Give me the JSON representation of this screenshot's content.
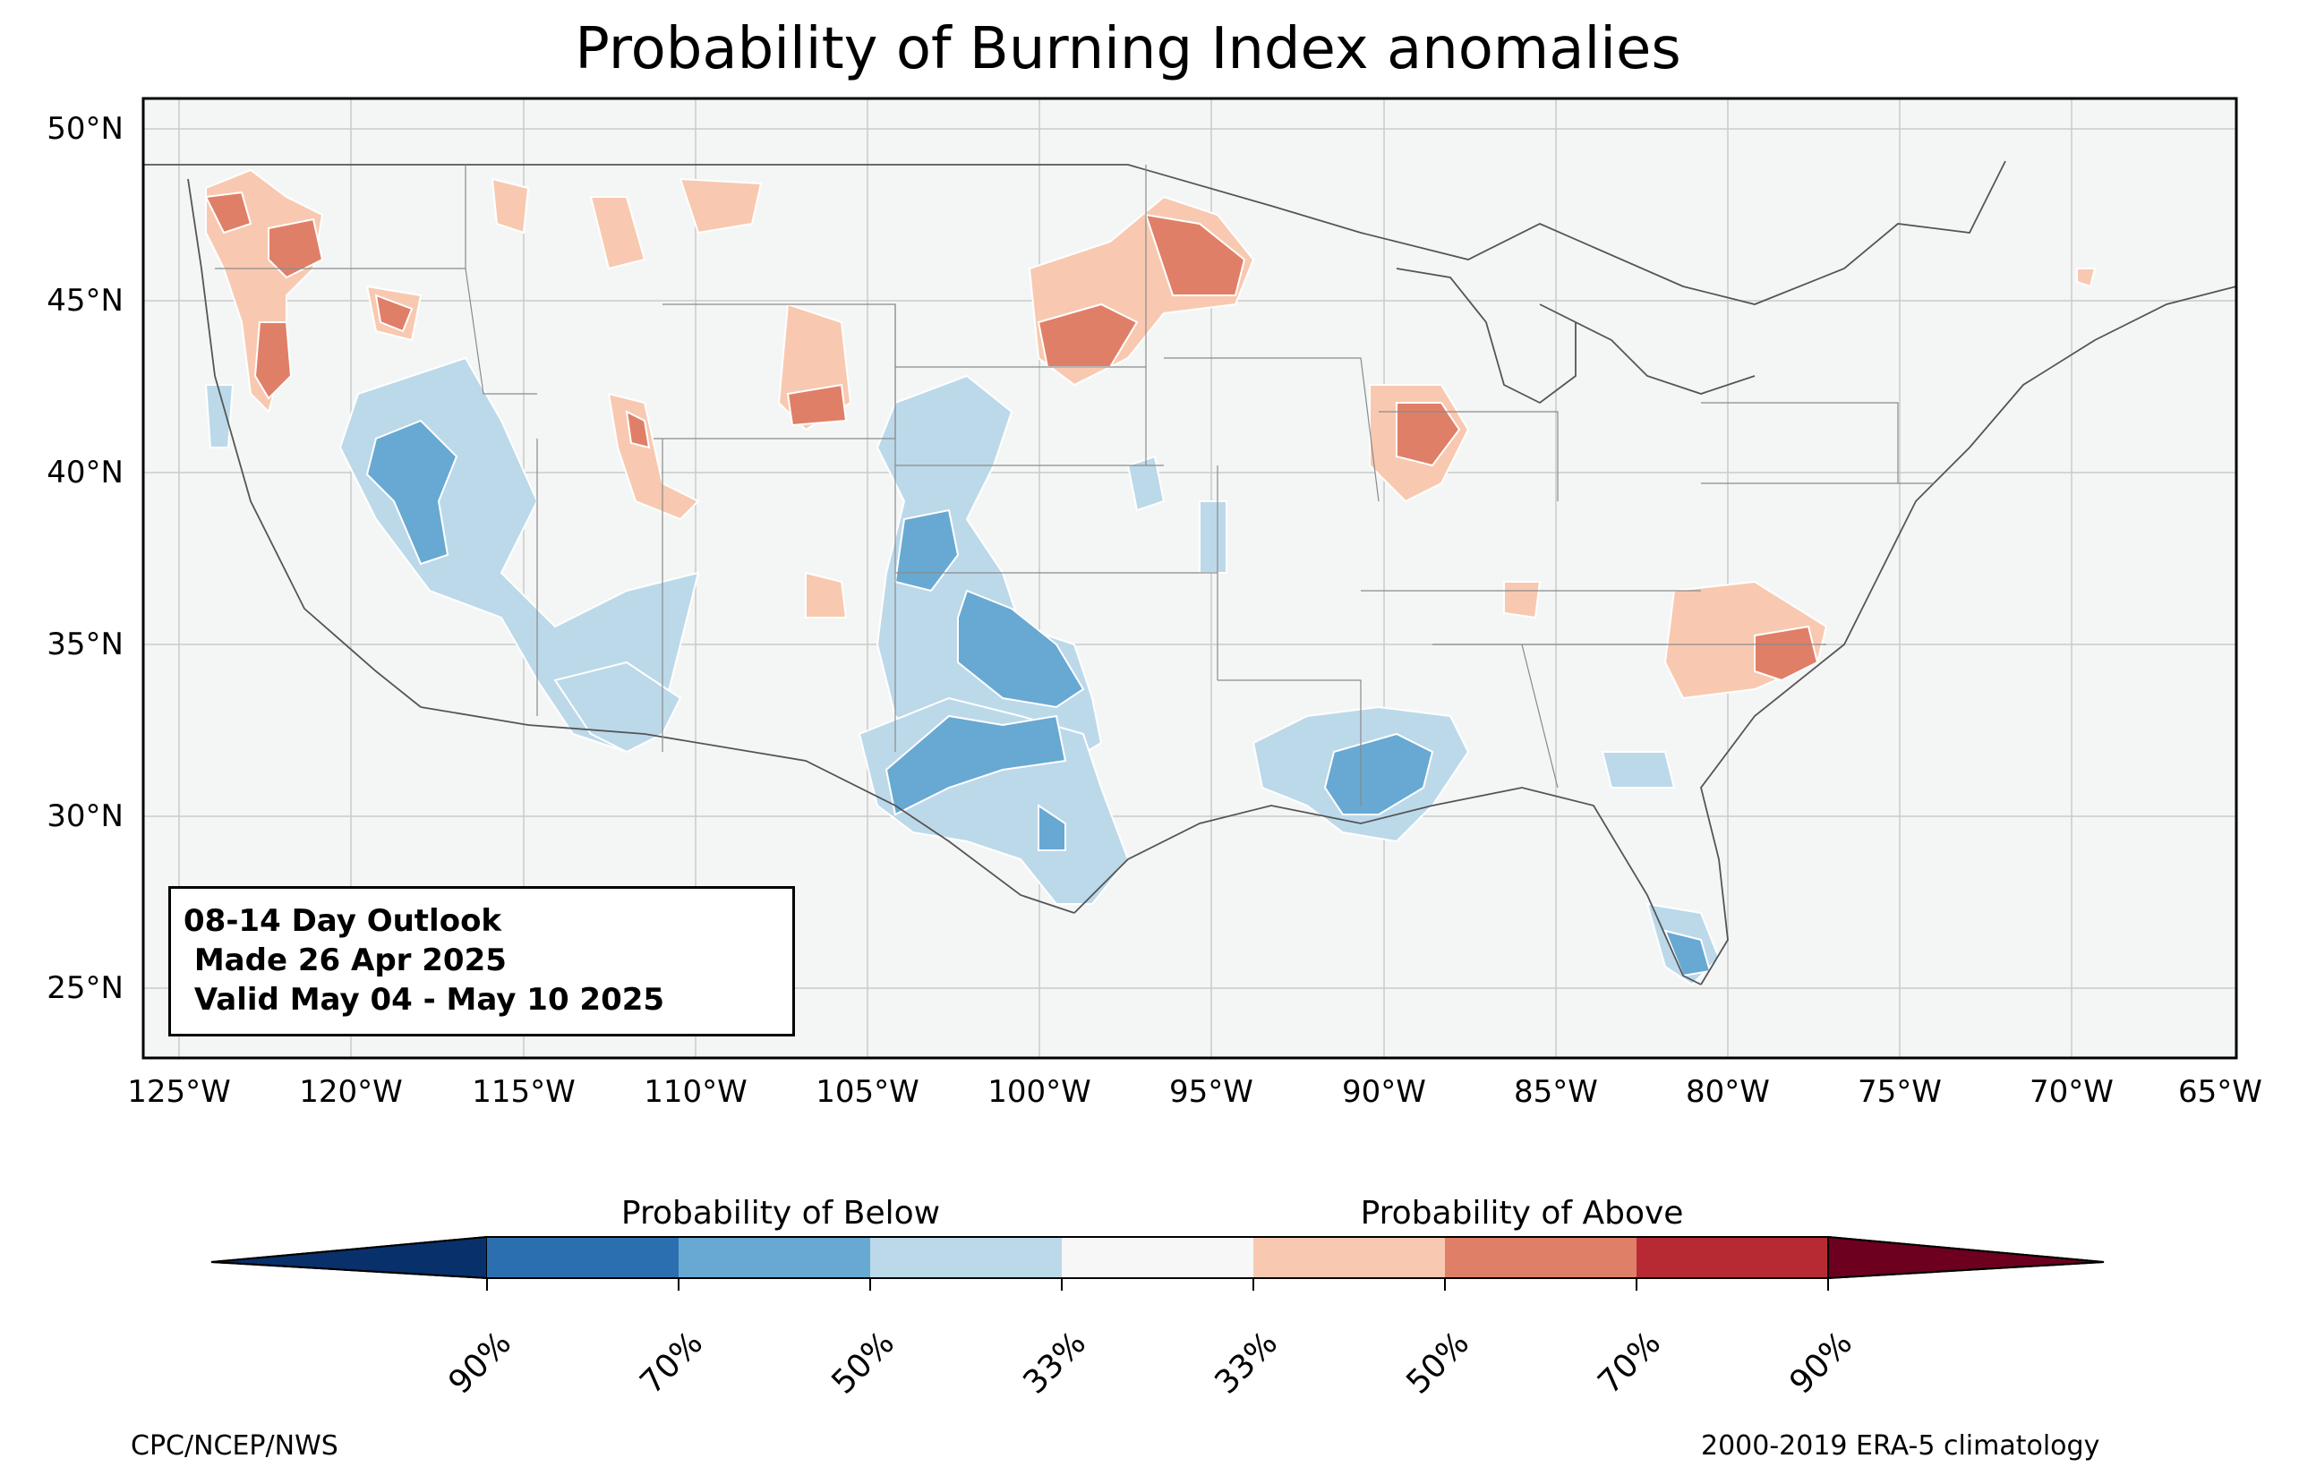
{
  "title": "Probability of Burning Index anomalies",
  "lat_labels": [
    "50°N",
    "45°N",
    "40°N",
    "35°N",
    "30°N",
    "25°N"
  ],
  "lon_labels": [
    "125°W",
    "120°W",
    "115°W",
    "110°W",
    "105°W",
    "100°W",
    "95°W",
    "90°W",
    "85°W",
    "80°W",
    "75°W",
    "70°W",
    "65°W"
  ],
  "info_box": {
    "line1": "08-14 Day Outlook",
    "line2": " Made 26 Apr 2025",
    "line3": " Valid May 04 - May 10 2025"
  },
  "colorbar": {
    "below_label": "Probability of Below",
    "above_label": "Probability of Above",
    "tick_labels": [
      "90%",
      "70%",
      "50%",
      "33%",
      "33%",
      "50%",
      "70%",
      "90%"
    ],
    "colors": [
      "#08306b",
      "#2c6fb0",
      "#67a9d2",
      "#bcd9ea",
      "#f7f7f7",
      "#f8c9b0",
      "#e07f68",
      "#b82a33",
      "#6d001e"
    ]
  },
  "footer": {
    "left": "CPC/NCEP/NWS",
    "right": "2000-2019 ERA-5 climatology"
  },
  "map_colors": {
    "background": "#f4f6f6",
    "above_33": "#f8c9b0",
    "above_50": "#e07f68",
    "below_33": "#bcd9ea",
    "below_50": "#67a9d2"
  }
}
